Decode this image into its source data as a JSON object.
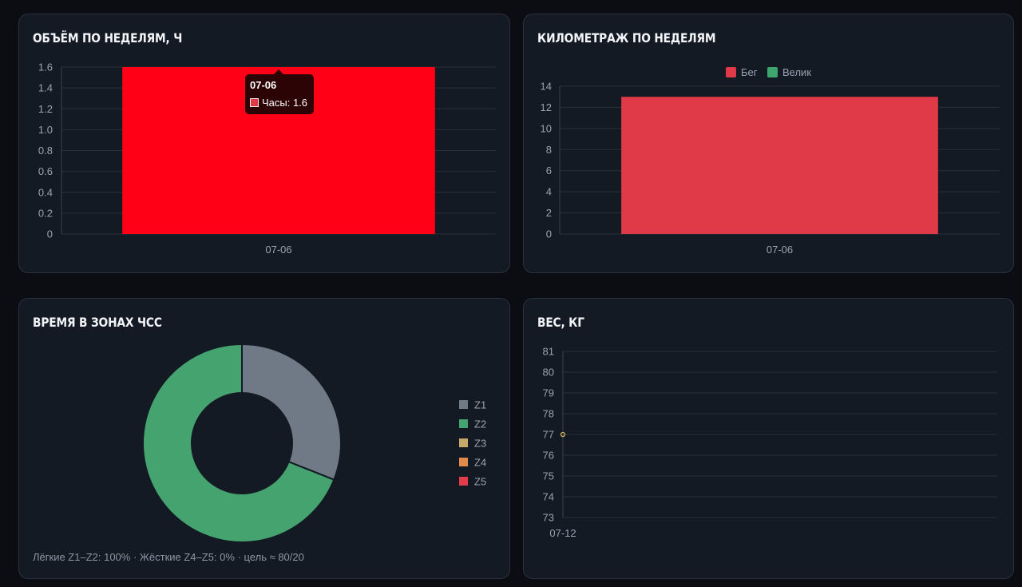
{
  "colors": {
    "volume_bar": "#ff0016",
    "run": "#e03a48",
    "bike": "#3fa36d",
    "z1": "#6f7a86",
    "z2": "#44a36f",
    "z3": "#c7a76a",
    "z4": "#e08a4c",
    "z5": "#e23b4a",
    "weight_point": "#d4b45a"
  },
  "volume_card": {
    "title": "ОБЪЁМ ПО НЕДЕЛЯМ, Ч",
    "tooltip": {
      "title": "07-06",
      "label": "Часы: 1.6"
    }
  },
  "mileage_card": {
    "title": "КИЛОМЕТРАЖ ПО НЕДЕЛЯМ",
    "legend": [
      "Бег",
      "Велик"
    ]
  },
  "zones_card": {
    "title": "ВРЕМЯ В ЗОНАХ ЧСС",
    "note": "Лёгкие Z1–Z2: 100% · Жёсткие Z4–Z5: 0% · цель ≈ 80/20"
  },
  "weight_card": {
    "title": "ВЕС, КГ"
  },
  "chart_data": [
    {
      "type": "bar",
      "title": "ОБЪЁМ ПО НЕДЕЛЯМ, Ч",
      "categories": [
        "07-06"
      ],
      "series": [
        {
          "name": "Часы",
          "values": [
            1.6
          ]
        }
      ],
      "ylim": [
        0,
        1.6
      ],
      "yticks": [
        "0",
        "0.2",
        "0.4",
        "0.6",
        "0.8",
        "1.0",
        "1.2",
        "1.4",
        "1.6"
      ],
      "grid": true
    },
    {
      "type": "bar",
      "title": "КИЛОМЕТРАЖ ПО НЕДЕЛЯМ",
      "categories": [
        "07-06"
      ],
      "series": [
        {
          "name": "Бег",
          "values": [
            13
          ]
        },
        {
          "name": "Велик",
          "values": [
            0
          ]
        }
      ],
      "ylim": [
        0,
        14
      ],
      "yticks": [
        "0",
        "2",
        "4",
        "6",
        "8",
        "10",
        "12",
        "14"
      ],
      "legend": "top",
      "grid": true
    },
    {
      "type": "pie",
      "title": "ВРЕМЯ В ЗОНАХ ЧСС",
      "labels": [
        "Z1",
        "Z2",
        "Z3",
        "Z4",
        "Z5"
      ],
      "values": [
        31,
        69,
        0,
        0,
        0
      ],
      "legend": "right"
    },
    {
      "type": "line",
      "title": "ВЕС, КГ",
      "x": [
        "07-12"
      ],
      "y": [
        77
      ],
      "ylim": [
        73,
        81
      ],
      "yticks": [
        "73",
        "74",
        "75",
        "76",
        "77",
        "78",
        "79",
        "80",
        "81"
      ],
      "grid": true
    }
  ]
}
